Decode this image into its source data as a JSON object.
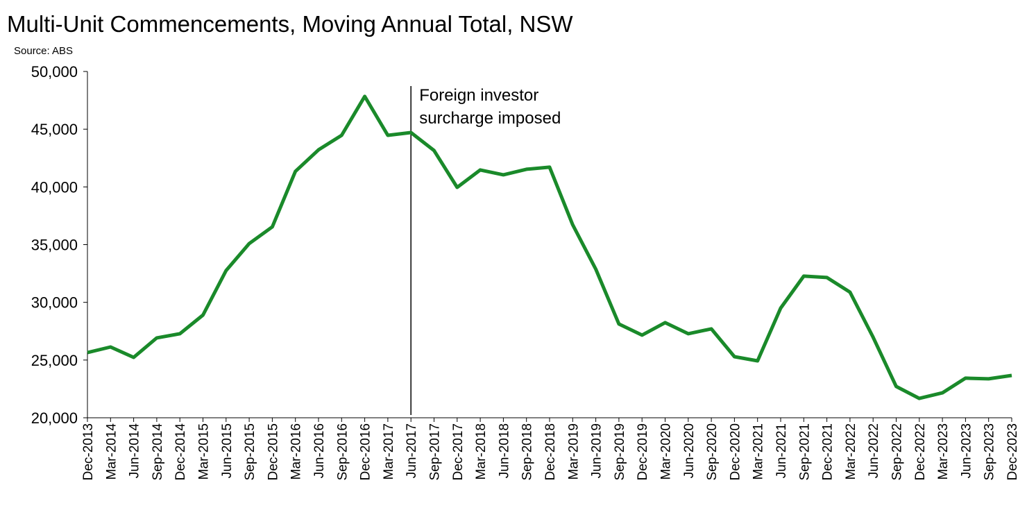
{
  "chart_data": {
    "type": "line",
    "title": "Multi-Unit Commencements, Moving Annual Total, NSW",
    "subtitle": "Source: ABS",
    "xlabel": "",
    "ylabel": "",
    "ylim": [
      20000,
      50000
    ],
    "yticks": [
      20000,
      25000,
      30000,
      35000,
      40000,
      45000,
      50000
    ],
    "ytick_labels": [
      "20,000",
      "25,000",
      "30,000",
      "35,000",
      "40,000",
      "45,000",
      "50,000"
    ],
    "grid": false,
    "legend": "none",
    "color": "#1a8a2a",
    "categories": [
      "Dec-2013",
      "Mar-2014",
      "Jun-2014",
      "Sep-2014",
      "Dec-2014",
      "Mar-2015",
      "Jun-2015",
      "Sep-2015",
      "Dec-2015",
      "Mar-2016",
      "Jun-2016",
      "Sep-2016",
      "Dec-2016",
      "Mar-2017",
      "Jun-2017",
      "Sep-2017",
      "Dec-2017",
      "Mar-2018",
      "Jun-2018",
      "Sep-2018",
      "Dec-2018",
      "Mar-2019",
      "Jun-2019",
      "Sep-2019",
      "Dec-2019",
      "Mar-2020",
      "Jun-2020",
      "Sep-2020",
      "Dec-2020",
      "Mar-2021",
      "Jun-2021",
      "Sep-2021",
      "Dec-2021",
      "Mar-2022",
      "Jun-2022",
      "Sep-2022",
      "Dec-2022",
      "Mar-2023",
      "Jun-2023",
      "Sep-2023",
      "Dec-2023"
    ],
    "values": [
      25650,
      26130,
      25230,
      26920,
      27280,
      28900,
      32750,
      35090,
      36540,
      41350,
      43210,
      44470,
      47840,
      44470,
      44710,
      43150,
      39960,
      41470,
      41050,
      41530,
      41710,
      36720,
      32870,
      28120,
      27160,
      28240,
      27280,
      27700,
      25290,
      24930,
      29500,
      32270,
      32150,
      30880,
      26980,
      22710,
      21680,
      22160,
      23430,
      23370,
      23670
    ],
    "annotation": {
      "category": "Jun-2017",
      "lines": [
        "Foreign investor",
        "surcharge imposed"
      ]
    }
  }
}
